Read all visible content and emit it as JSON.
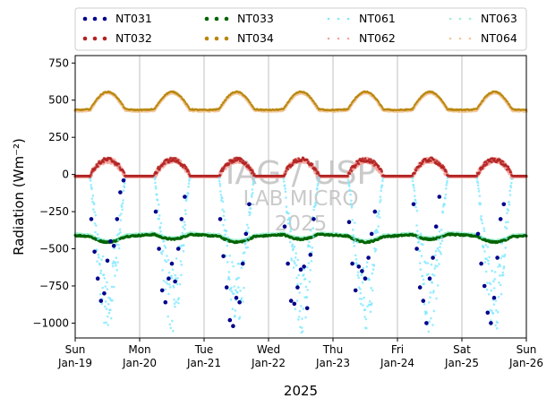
{
  "chart_data": {
    "type": "scatter",
    "xlabel": "2025",
    "ylabel": "Radiation (Wm⁻²)",
    "ylim": [
      -1100,
      800
    ],
    "xlim": [
      0,
      7
    ],
    "grid": "x only",
    "legend": "top, above plot, 4 columns",
    "yticks": [
      {
        "v": 750,
        "label": "750"
      },
      {
        "v": 500,
        "label": "500"
      },
      {
        "v": 250,
        "label": "250"
      },
      {
        "v": 0,
        "label": "0"
      },
      {
        "v": -250,
        "label": "−250"
      },
      {
        "v": -500,
        "label": "−500"
      },
      {
        "v": -750,
        "label": "−750"
      },
      {
        "v": -1000,
        "label": "−1000"
      }
    ],
    "xticks": [
      {
        "v": 0,
        "day": "Sun",
        "date": "Jan-19"
      },
      {
        "v": 1,
        "day": "Mon",
        "date": "Jan-20"
      },
      {
        "v": 2,
        "day": "Tue",
        "date": "Jan-21"
      },
      {
        "v": 3,
        "day": "Wed",
        "date": "Jan-22"
      },
      {
        "v": 4,
        "day": "Thu",
        "date": "Jan-23"
      },
      {
        "v": 5,
        "day": "Fri",
        "date": "Jan-24"
      },
      {
        "v": 6,
        "day": "Sat",
        "date": "Jan-25"
      },
      {
        "v": 7,
        "day": "Sun",
        "date": "Jan-26"
      }
    ],
    "watermark": [
      "IAG / USP",
      "LAB MICRO",
      "2025"
    ],
    "series": [
      {
        "name": "NT031",
        "color": "#00008b",
        "style": "dots",
        "description": "daytime only, falls to about -1000 near midday",
        "points": [
          [
            0.25,
            -300
          ],
          [
            0.3,
            -520
          ],
          [
            0.35,
            -700
          ],
          [
            0.4,
            -850
          ],
          [
            0.45,
            -800
          ],
          [
            0.5,
            -580
          ],
          [
            0.55,
            -450
          ],
          [
            0.6,
            -480
          ],
          [
            0.65,
            -300
          ],
          [
            0.7,
            -120
          ],
          [
            0.75,
            -40
          ],
          [
            1.25,
            -250
          ],
          [
            1.3,
            -500
          ],
          [
            1.35,
            -780
          ],
          [
            1.4,
            -860
          ],
          [
            1.45,
            -700
          ],
          [
            1.5,
            -600
          ],
          [
            1.55,
            -720
          ],
          [
            1.6,
            -500
          ],
          [
            1.65,
            -300
          ],
          [
            1.7,
            -150
          ],
          [
            2.25,
            -300
          ],
          [
            2.3,
            -550
          ],
          [
            2.35,
            -760
          ],
          [
            2.4,
            -980
          ],
          [
            2.45,
            -1020
          ],
          [
            2.5,
            -830
          ],
          [
            2.55,
            -860
          ],
          [
            2.6,
            -600
          ],
          [
            2.65,
            -400
          ],
          [
            2.7,
            -200
          ],
          [
            3.25,
            -350
          ],
          [
            3.3,
            -600
          ],
          [
            3.35,
            -850
          ],
          [
            3.4,
            -870
          ],
          [
            3.45,
            -760
          ],
          [
            3.5,
            -640
          ],
          [
            3.55,
            -620
          ],
          [
            3.6,
            -900
          ],
          [
            3.65,
            -540
          ],
          [
            3.7,
            -300
          ],
          [
            4.25,
            -320
          ],
          [
            4.3,
            -600
          ],
          [
            4.35,
            -780
          ],
          [
            4.4,
            -620
          ],
          [
            4.45,
            -650
          ],
          [
            4.5,
            -700
          ],
          [
            4.55,
            -560
          ],
          [
            4.6,
            -400
          ],
          [
            4.65,
            -250
          ],
          [
            5.25,
            -200
          ],
          [
            5.3,
            -500
          ],
          [
            5.35,
            -760
          ],
          [
            5.4,
            -850
          ],
          [
            5.45,
            -1000
          ],
          [
            5.5,
            -700
          ],
          [
            5.55,
            -560
          ],
          [
            5.6,
            -350
          ],
          [
            5.65,
            -150
          ],
          [
            6.25,
            -400
          ],
          [
            6.3,
            -600
          ],
          [
            6.35,
            -750
          ],
          [
            6.4,
            -930
          ],
          [
            6.45,
            -1000
          ],
          [
            6.5,
            -830
          ],
          [
            6.55,
            -560
          ],
          [
            6.6,
            -300
          ],
          [
            6.65,
            -200
          ]
        ]
      },
      {
        "name": "NT032",
        "color": "#b22222",
        "style": "dots",
        "description": "about -10 at night, daytime peaks about 100"
      },
      {
        "name": "NT033",
        "color": "#006400",
        "style": "dots",
        "description": "about -410 to -480, smooth"
      },
      {
        "name": "NT034",
        "color": "#b8860b",
        "style": "dots",
        "description": "about 440 at night, daytime peaks about 550"
      },
      {
        "name": "NT061",
        "color": "#7fe8ff",
        "style": "faint dots",
        "description": "daytime only, falls to about -1050"
      },
      {
        "name": "NT062",
        "color": "#f4a6a0",
        "style": "faint dots",
        "description": "tracks NT032"
      },
      {
        "name": "NT063",
        "color": "#9ff0d0",
        "style": "faint dots",
        "description": "tracks NT033"
      },
      {
        "name": "NT064",
        "color": "#f2c79a",
        "style": "faint dots",
        "description": "tracks NT034"
      }
    ]
  }
}
